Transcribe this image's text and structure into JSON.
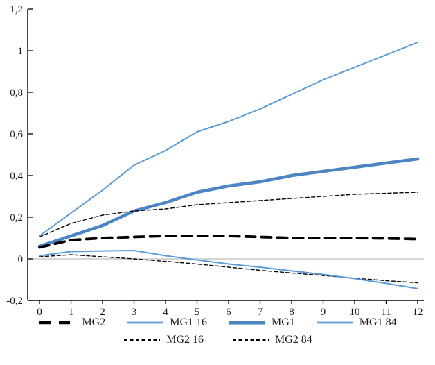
{
  "chart_data": {
    "type": "line",
    "title": "",
    "xlabel": "",
    "ylabel": "",
    "x": [
      0,
      1,
      2,
      3,
      4,
      5,
      6,
      7,
      8,
      9,
      10,
      11,
      12
    ],
    "x_tick_labels": [
      "0",
      "1",
      "2",
      "3",
      "4",
      "5",
      "6",
      "7",
      "8",
      "9",
      "10",
      "11",
      "12"
    ],
    "y_tick_values": [
      1.2,
      1.0,
      0.8,
      0.6,
      0.4,
      0.2,
      0,
      -0.2
    ],
    "y_tick_labels": [
      "1,2",
      "1",
      "0,8",
      "0,6",
      "0,4",
      "0,2",
      "0",
      "-0,2"
    ],
    "ylim": [
      -0.2,
      1.2
    ],
    "xlim": [
      0,
      12
    ],
    "grid": "zero-line-only",
    "legend_position": "bottom",
    "colors": {
      "blue_thick": "#4C84C4",
      "blue_thin": "#5B9BD5",
      "black": "#000000",
      "zero_line": "#C9C9C9",
      "axis": "#000000"
    },
    "series": [
      {
        "name": "MG1",
        "style": "solid",
        "color_key": "blue_thick",
        "width": 4.5,
        "values": [
          0.06,
          0.11,
          0.16,
          0.23,
          0.27,
          0.32,
          0.35,
          0.37,
          0.4,
          0.42,
          0.44,
          0.46,
          0.48
        ]
      },
      {
        "name": "MG2 16",
        "style": "dashed",
        "color_key": "black",
        "width": 1.4,
        "dash": "5 3.5",
        "values": [
          0.105,
          0.17,
          0.21,
          0.23,
          0.24,
          0.26,
          0.27,
          0.28,
          0.29,
          0.3,
          0.31,
          0.315,
          0.32
        ]
      },
      {
        "name": "MG2 84",
        "style": "dashed",
        "color_key": "black",
        "width": 1.4,
        "dash": "5 3.5",
        "values": [
          0.01,
          0.02,
          0.01,
          0.0,
          -0.012,
          -0.025,
          -0.04,
          -0.055,
          -0.068,
          -0.08,
          -0.093,
          -0.105,
          -0.115
        ]
      },
      {
        "name": "MG2",
        "style": "dashed",
        "color_key": "black",
        "width": 3.8,
        "dash": "14 9",
        "swatch_dash": "16 12",
        "values": [
          0.055,
          0.09,
          0.1,
          0.105,
          0.11,
          0.11,
          0.11,
          0.105,
          0.1,
          0.1,
          0.1,
          0.098,
          0.095
        ]
      },
      {
        "name": "MG1 16",
        "style": "solid",
        "color_key": "blue_thin",
        "width": 2,
        "values": [
          0.11,
          0.22,
          0.33,
          0.45,
          0.52,
          0.61,
          0.66,
          0.72,
          0.79,
          0.86,
          0.92,
          0.98,
          1.04
        ]
      },
      {
        "name": "MG1 84",
        "style": "solid",
        "color_key": "blue_thin",
        "width": 2,
        "values": [
          0.015,
          0.035,
          0.038,
          0.04,
          0.015,
          -0.005,
          -0.025,
          -0.04,
          -0.058,
          -0.075,
          -0.095,
          -0.118,
          -0.143
        ]
      }
    ],
    "legend_rows": [
      [
        "MG2",
        "MG1 16",
        "MG1",
        "MG1 84"
      ],
      [
        "MG2 16",
        "MG2 84"
      ]
    ]
  }
}
